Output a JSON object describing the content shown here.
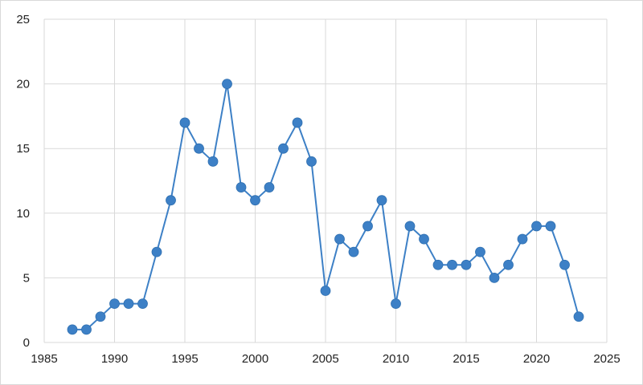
{
  "chart_data": {
    "type": "line",
    "title": "",
    "xlabel": "",
    "ylabel": "",
    "xlim": [
      1985,
      2025
    ],
    "ylim": [
      0,
      25
    ],
    "x_ticks": [
      1985,
      1990,
      1995,
      2000,
      2005,
      2010,
      2015,
      2020,
      2025
    ],
    "y_ticks": [
      0,
      5,
      10,
      15,
      20,
      25
    ],
    "grid": true,
    "legend": "none",
    "colors": {
      "series": "#3d80c6",
      "grid": "#d9d9d9",
      "frame": "#d9d9d9"
    },
    "series": [
      {
        "x": [
          1987,
          1988,
          1989,
          1990,
          1991,
          1992,
          1993,
          1994,
          1995,
          1996,
          1997,
          1998,
          1999,
          2000,
          2001,
          2002,
          2003,
          2004,
          2005,
          2006,
          2007,
          2008,
          2009,
          2010,
          2011,
          2012,
          2013,
          2014,
          2015,
          2016,
          2017,
          2018,
          2019,
          2020,
          2021,
          2022,
          2023
        ],
        "values": [
          1,
          1,
          2,
          3,
          3,
          3,
          7,
          11,
          17,
          15,
          14,
          20,
          12,
          11,
          12,
          15,
          17,
          14,
          4,
          8,
          7,
          9,
          11,
          3,
          9,
          8,
          6,
          6,
          6,
          7,
          5,
          6,
          8,
          9,
          9,
          6,
          2
        ]
      }
    ]
  }
}
